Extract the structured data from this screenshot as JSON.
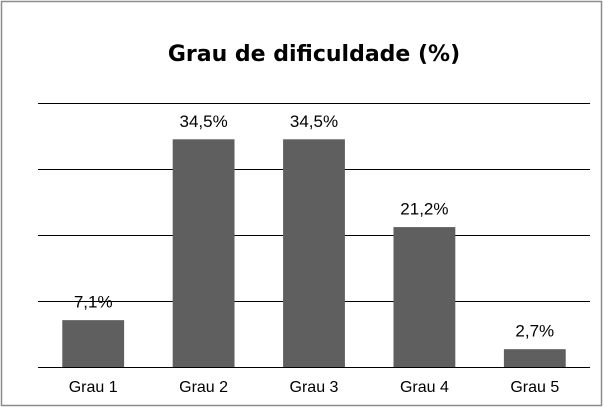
{
  "chart_data": {
    "type": "bar",
    "title": "Grau de dificuldade (%)",
    "categories": [
      "Grau 1",
      "Grau 2",
      "Grau 3",
      "Grau 4",
      "Grau 5"
    ],
    "values": [
      7.1,
      34.5,
      34.5,
      21.2,
      2.7
    ],
    "value_labels": [
      "7,1%",
      "34,5%",
      "34,5%",
      "21,2%",
      "2,7%"
    ],
    "color": "#5f5f5f",
    "ylim": [
      0,
      40
    ],
    "yticks": [
      0,
      10,
      20,
      30,
      40
    ],
    "grid": true
  }
}
